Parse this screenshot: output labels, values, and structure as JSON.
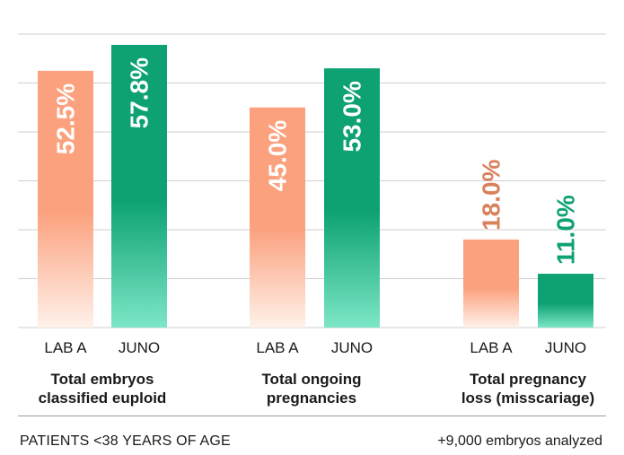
{
  "chart_data": {
    "type": "bar",
    "ylim": [
      0,
      60
    ],
    "grid": true,
    "groups": [
      {
        "title": "Total embryos\nclassified euploid",
        "bars": [
          {
            "category": "LAB A",
            "value": 52.5,
            "label": "52.5%"
          },
          {
            "category": "JUNO",
            "value": 57.8,
            "label": "57.8%"
          }
        ]
      },
      {
        "title": "Total ongoing\npregnancies",
        "bars": [
          {
            "category": "LAB A",
            "value": 45.0,
            "label": "45.0%"
          },
          {
            "category": "JUNO",
            "value": 53.0,
            "label": "53.0%"
          }
        ]
      },
      {
        "title": "Total pregnancy\nloss (misscariage)",
        "bars": [
          {
            "category": "LAB A",
            "value": 18.0,
            "label": "18.0%"
          },
          {
            "category": "JUNO",
            "value": 11.0,
            "label": "11.0%"
          }
        ]
      }
    ],
    "colors": {
      "LAB A": {
        "top": "#FBA17E",
        "bottom": "#FFF1EA",
        "text_outside": "#D9815B"
      },
      "JUNO": {
        "top": "#0DA173",
        "bottom": "#7DE6C7",
        "text_outside": "#0DA173"
      },
      "grid": "#CFCFCF",
      "text": "#1a1a1a"
    }
  },
  "footer": {
    "left": "PATIENTS <38 YEARS OF AGE",
    "right": "+9,000 embryos analyzed"
  }
}
